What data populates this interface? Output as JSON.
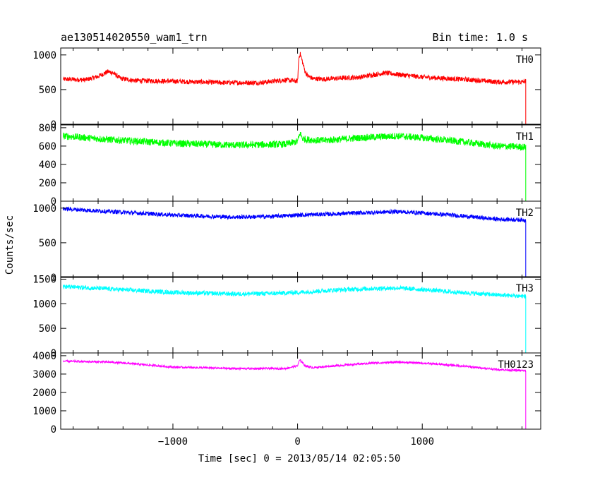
{
  "header": {
    "title": "ae130514020550_wam1_trn",
    "bin_time": "Bin time: 1.0 s"
  },
  "chart_data": {
    "type": "line",
    "title": "ae130514020550_wam1_trn",
    "subtitle": "Bin time: 1.0 s",
    "xlabel": "Time [sec] 0 = 2013/05/14 02:05:50",
    "ylabel": "Counts/sec",
    "xlim": [
      -1900,
      1950
    ],
    "xticks": [
      -1000,
      0,
      1000
    ],
    "grid": false,
    "panels": [
      {
        "name": "TH0",
        "color": "#ff0000",
        "ylim": [
          0,
          1100
        ],
        "yticks": [
          0,
          500,
          1000
        ],
        "noise": 35,
        "x": [
          -1880,
          -1700,
          -1600,
          -1520,
          -1480,
          -1420,
          -1300,
          -1000,
          -600,
          -300,
          -100,
          0,
          10,
          20,
          30,
          60,
          80,
          120,
          200,
          500,
          700,
          800,
          1000,
          1400,
          1600,
          1800,
          1830
        ],
        "y": [
          650,
          640,
          690,
          760,
          740,
          660,
          630,
          620,
          600,
          600,
          640,
          620,
          960,
          1020,
          960,
          760,
          700,
          660,
          650,
          680,
          740,
          720,
          680,
          640,
          610,
          610,
          620
        ],
        "drop_x": 1830,
        "drop_y": 0
      },
      {
        "name": "TH1",
        "color": "#00ff00",
        "ylim": [
          0,
          830
        ],
        "yticks": [
          0,
          200,
          400,
          600,
          800
        ],
        "noise": 38,
        "x": [
          -1880,
          -1500,
          -1000,
          -500,
          -100,
          0,
          20,
          40,
          80,
          200,
          500,
          800,
          1000,
          1300,
          1600,
          1830
        ],
        "y": [
          710,
          670,
          630,
          610,
          620,
          650,
          740,
          680,
          670,
          660,
          690,
          710,
          690,
          650,
          600,
          590
        ],
        "drop_x": 1830,
        "drop_y": 0
      },
      {
        "name": "TH2",
        "color": "#0000ff",
        "ylim": [
          0,
          1100
        ],
        "yticks": [
          0,
          500,
          1000
        ],
        "noise": 30,
        "x": [
          -1880,
          -1500,
          -1000,
          -500,
          -200,
          0,
          200,
          500,
          800,
          1000,
          1300,
          1600,
          1830
        ],
        "y": [
          990,
          950,
          900,
          870,
          880,
          900,
          910,
          930,
          950,
          930,
          890,
          840,
          830
        ],
        "drop_x": 1830,
        "drop_y": 0
      },
      {
        "name": "TH3",
        "color": "#00ffff",
        "ylim": [
          0,
          1550
        ],
        "yticks": [
          0,
          500,
          1000,
          1500
        ],
        "noise": 45,
        "x": [
          -1880,
          -1500,
          -1000,
          -500,
          -200,
          0,
          300,
          600,
          800,
          1000,
          1300,
          1600,
          1830
        ],
        "y": [
          1350,
          1300,
          1230,
          1200,
          1210,
          1230,
          1280,
          1310,
          1320,
          1290,
          1230,
          1180,
          1150
        ],
        "drop_x": 1830,
        "drop_y": 0
      },
      {
        "name": "TH0123",
        "color": "#ff00ff",
        "ylim": [
          0,
          4150
        ],
        "yticks": [
          0,
          1000,
          2000,
          3000,
          4000
        ],
        "noise": 55,
        "x": [
          -1880,
          -1500,
          -1300,
          -1000,
          -500,
          -100,
          0,
          15,
          30,
          60,
          120,
          300,
          600,
          800,
          1000,
          1300,
          1600,
          1830
        ],
        "y": [
          3700,
          3650,
          3550,
          3380,
          3300,
          3300,
          3450,
          3750,
          3700,
          3450,
          3350,
          3450,
          3600,
          3650,
          3600,
          3450,
          3250,
          3180
        ],
        "drop_x": 1830,
        "drop_y": 0
      }
    ]
  }
}
